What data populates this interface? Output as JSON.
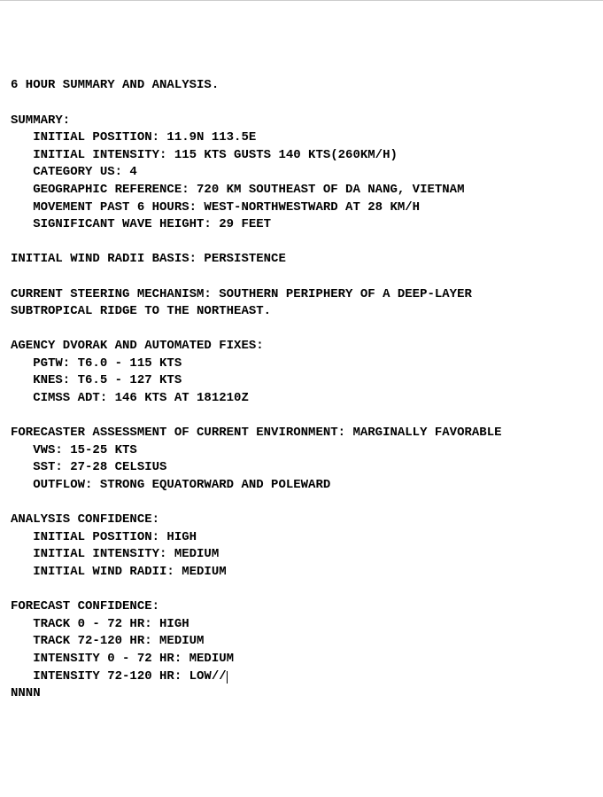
{
  "header": "6 HOUR SUMMARY AND ANALYSIS.",
  "summary": {
    "label": "SUMMARY:",
    "initial_position": "   INITIAL POSITION: 11.9N 113.5E",
    "initial_intensity": "   INITIAL INTENSITY: 115 KTS GUSTS 140 KTS(260KM/H)",
    "category_us": "   CATEGORY US: 4",
    "geographic_reference": "   GEOGRAPHIC REFERENCE: 720 KM SOUTHEAST OF DA NANG, VIETNAM",
    "movement": "   MOVEMENT PAST 6 HOURS: WEST-NORTHWESTWARD AT 28 KM/H",
    "wave_height": "   SIGNIFICANT WAVE HEIGHT: 29 FEET"
  },
  "wind_radii_basis": "INITIAL WIND RADII BASIS: PERSISTENCE",
  "steering_mechanism_line1": "CURRENT STEERING MECHANISM: SOUTHERN PERIPHERY OF A DEEP-LAYER",
  "steering_mechanism_line2": "SUBTROPICAL RIDGE TO THE NORTHEAST.",
  "dvorak": {
    "label": "AGENCY DVORAK AND AUTOMATED FIXES:",
    "pgtw": "   PGTW: T6.0 - 115 KTS",
    "knes": "   KNES: T6.5 - 127 KTS",
    "cimss": "   CIMSS ADT: 146 KTS AT 181210Z"
  },
  "environment": {
    "label": "FORECASTER ASSESSMENT OF CURRENT ENVIRONMENT: MARGINALLY FAVORABLE",
    "vws": "   VWS: 15-25 KTS",
    "sst": "   SST: 27-28 CELSIUS",
    "outflow": "   OUTFLOW: STRONG EQUATORWARD AND POLEWARD"
  },
  "analysis_confidence": {
    "label": "ANALYSIS CONFIDENCE:",
    "initial_position": "   INITIAL POSITION: HIGH",
    "initial_intensity": "   INITIAL INTENSITY: MEDIUM",
    "initial_wind_radii": "   INITIAL WIND RADII: MEDIUM"
  },
  "forecast_confidence": {
    "label": "FORECAST CONFIDENCE:",
    "track_0_72": "   TRACK 0 - 72 HR: HIGH",
    "track_72_120": "   TRACK 72-120 HR: MEDIUM",
    "intensity_0_72": "   INTENSITY 0 - 72 HR: MEDIUM",
    "intensity_72_120": "   INTENSITY 72-120 HR: LOW//"
  },
  "terminator": "NNNN"
}
